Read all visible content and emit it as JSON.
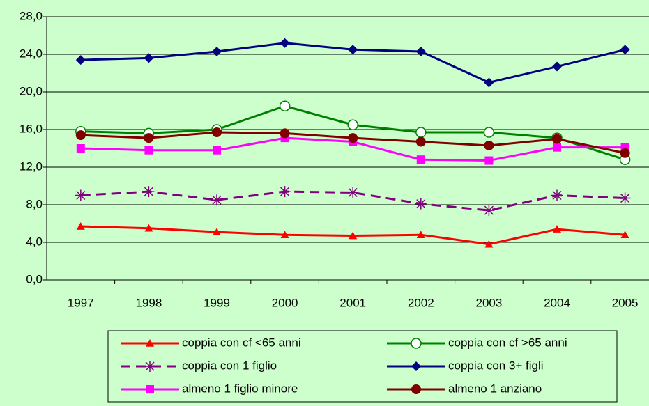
{
  "chart_data": {
    "type": "line",
    "categories": [
      "1997",
      "1998",
      "1999",
      "2000",
      "2001",
      "2002",
      "2003",
      "2004",
      "2005"
    ],
    "series": [
      {
        "name": "coppia con cf <65 anni",
        "color": "#ff0000",
        "marker": "triangle",
        "values": [
          5.7,
          5.5,
          5.1,
          4.8,
          4.7,
          4.8,
          3.8,
          5.4,
          4.8
        ]
      },
      {
        "name": "coppia con cf >65 anni",
        "color": "#008000",
        "marker": "open-circle",
        "values": [
          15.8,
          15.6,
          16.0,
          18.5,
          16.5,
          15.7,
          15.7,
          15.1,
          12.8
        ]
      },
      {
        "name": "coppia con 1 figlio",
        "color": "#800080",
        "marker": "asterisk",
        "dashed": true,
        "values": [
          9.0,
          9.4,
          8.5,
          9.4,
          9.3,
          8.1,
          7.4,
          9.0,
          8.7
        ]
      },
      {
        "name": "coppia con 3+ figli",
        "color": "#000080",
        "marker": "diamond",
        "values": [
          23.4,
          23.6,
          24.3,
          25.2,
          24.5,
          24.3,
          21.0,
          22.7,
          24.5
        ]
      },
      {
        "name": "almeno 1 figlio minore",
        "color": "#ff00ff",
        "marker": "square",
        "values": [
          14.0,
          13.8,
          13.8,
          15.1,
          14.7,
          12.8,
          12.7,
          14.1,
          14.1
        ]
      },
      {
        "name": "almeno 1 anziano",
        "color": "#800000",
        "marker": "circle",
        "values": [
          15.4,
          15.1,
          15.7,
          15.6,
          15.1,
          14.7,
          14.3,
          15.0,
          13.5
        ]
      }
    ],
    "ylim": [
      0,
      28
    ],
    "yticks": [
      {
        "value": 0,
        "label": "0,0"
      },
      {
        "value": 4,
        "label": "4,0"
      },
      {
        "value": 8,
        "label": "8,0"
      },
      {
        "value": 12,
        "label": "12,0"
      },
      {
        "value": 16,
        "label": "16,0"
      },
      {
        "value": 20,
        "label": "20,0"
      },
      {
        "value": 24,
        "label": "24,0"
      },
      {
        "value": 28,
        "label": "28,0"
      }
    ],
    "grid": true,
    "background": "#ccffcc",
    "legend": "bottom"
  }
}
